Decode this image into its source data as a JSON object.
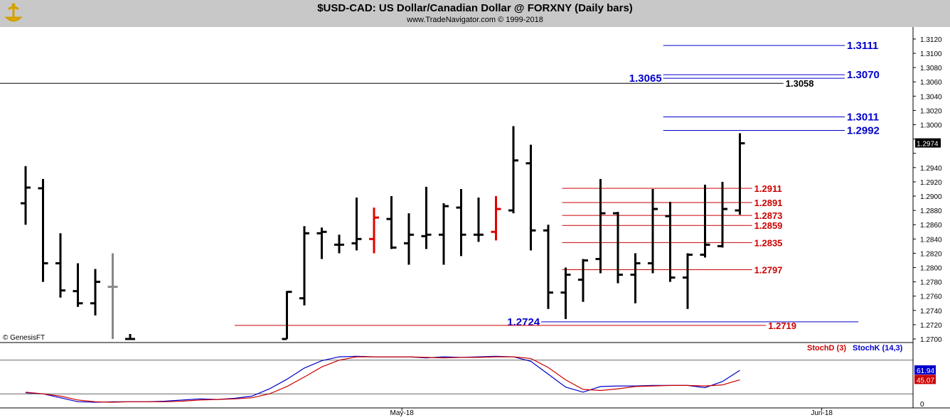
{
  "header": {
    "title": "$USD-CAD:  US Dollar/Canadian Dollar @ FORXNY  (Daily bars)",
    "subtitle": "www.TradeNavigator.com © 1999-2018"
  },
  "watermark": "© GenesisFT",
  "colors": {
    "bar": "#000000",
    "down_bar": "#e00000",
    "blue": "#0000cc",
    "red": "#cc0000",
    "header_bg": "#c8c8c8"
  },
  "chart_data": [
    {
      "type": "ohlc",
      "title": "$USD-CAD:  US Dollar/Canadian Dollar @ FORXNY  (Daily bars)",
      "ylim": [
        1.27,
        1.313
      ],
      "y_ticks": [
        "1.2700",
        "1.2720",
        "1.2740",
        "1.2760",
        "1.2780",
        "1.2800",
        "1.2820",
        "1.2840",
        "1.2860",
        "1.2880",
        "1.2900",
        "1.2920",
        "1.2940",
        "1.2960",
        "1.2980",
        "1.3000",
        "1.3020",
        "1.3040",
        "1.3060",
        "1.3080",
        "1.3100",
        "1.3120"
      ],
      "x_labels": [
        {
          "label": "May-18",
          "bar": 21.6
        },
        {
          "label": "Jun-18",
          "bar": 45.7
        }
      ],
      "bars": [
        {
          "i": 0,
          "o": 1.289,
          "h": 1.2942,
          "l": 1.286,
          "c": 1.2912,
          "color": "black"
        },
        {
          "i": 1,
          "o": 1.2911,
          "h": 1.2924,
          "l": 1.278,
          "c": 1.2806,
          "color": "black"
        },
        {
          "i": 2,
          "o": 1.2806,
          "h": 1.2848,
          "l": 1.2758,
          "c": 1.2768,
          "color": "black"
        },
        {
          "i": 3,
          "o": 1.2767,
          "h": 1.2806,
          "l": 1.2745,
          "c": 1.275,
          "color": "black"
        },
        {
          "i": 4,
          "o": 1.275,
          "h": 1.2798,
          "l": 1.2733,
          "c": 1.278,
          "color": "black"
        },
        {
          "i": 5,
          "o": 1.2773,
          "h": 1.282,
          "l": 1.27,
          "c": 1.2773,
          "color": "gray"
        },
        {
          "i": 6,
          "o": 1.27,
          "h": 1.2707,
          "l": 1.27,
          "c": 1.27,
          "color": "black"
        },
        {
          "i": 15,
          "o": 1.27,
          "h": 1.2767,
          "l": 1.27,
          "c": 1.2766,
          "color": "black"
        },
        {
          "i": 16,
          "o": 1.2757,
          "h": 1.2858,
          "l": 1.2747,
          "c": 1.2848,
          "color": "black"
        },
        {
          "i": 17,
          "o": 1.2848,
          "h": 1.2856,
          "l": 1.2812,
          "c": 1.285,
          "color": "black"
        },
        {
          "i": 18,
          "o": 1.2832,
          "h": 1.2846,
          "l": 1.282,
          "c": 1.2832,
          "color": "black"
        },
        {
          "i": 19,
          "o": 1.2834,
          "h": 1.2898,
          "l": 1.2824,
          "c": 1.284,
          "color": "black"
        },
        {
          "i": 20,
          "o": 1.284,
          "h": 1.2884,
          "l": 1.282,
          "c": 1.287,
          "color": "red"
        },
        {
          "i": 21,
          "o": 1.2868,
          "h": 1.29,
          "l": 1.2826,
          "c": 1.2828,
          "color": "black"
        },
        {
          "i": 22,
          "o": 1.2834,
          "h": 1.2876,
          "l": 1.2804,
          "c": 1.2846,
          "color": "black"
        },
        {
          "i": 23,
          "o": 1.2844,
          "h": 1.2913,
          "l": 1.2826,
          "c": 1.2846,
          "color": "black"
        },
        {
          "i": 24,
          "o": 1.2846,
          "h": 1.289,
          "l": 1.2804,
          "c": 1.2886,
          "color": "black"
        },
        {
          "i": 25,
          "o": 1.2884,
          "h": 1.291,
          "l": 1.2816,
          "c": 1.2846,
          "color": "black"
        },
        {
          "i": 26,
          "o": 1.2846,
          "h": 1.2898,
          "l": 1.2836,
          "c": 1.2846,
          "color": "black"
        },
        {
          "i": 27,
          "o": 1.285,
          "h": 1.29,
          "l": 1.2838,
          "c": 1.2882,
          "color": "red"
        },
        {
          "i": 28,
          "o": 1.288,
          "h": 1.2998,
          "l": 1.2876,
          "c": 1.295,
          "color": "black"
        },
        {
          "i": 29,
          "o": 1.2946,
          "h": 1.2972,
          "l": 1.2824,
          "c": 1.2852,
          "color": "black"
        },
        {
          "i": 30,
          "o": 1.2852,
          "h": 1.286,
          "l": 1.2742,
          "c": 1.2765,
          "color": "black"
        },
        {
          "i": 31,
          "o": 1.2765,
          "h": 1.28,
          "l": 1.2728,
          "c": 1.279,
          "color": "black"
        },
        {
          "i": 32,
          "o": 1.2783,
          "h": 1.2812,
          "l": 1.2752,
          "c": 1.281,
          "color": "black"
        },
        {
          "i": 33,
          "o": 1.2812,
          "h": 1.2924,
          "l": 1.2792,
          "c": 1.2876,
          "color": "black"
        },
        {
          "i": 34,
          "o": 1.2876,
          "h": 1.2878,
          "l": 1.2778,
          "c": 1.279,
          "color": "black"
        },
        {
          "i": 35,
          "o": 1.279,
          "h": 1.282,
          "l": 1.275,
          "c": 1.2806,
          "color": "black"
        },
        {
          "i": 36,
          "o": 1.2806,
          "h": 1.291,
          "l": 1.2792,
          "c": 1.2882,
          "color": "black"
        },
        {
          "i": 37,
          "o": 1.2872,
          "h": 1.2892,
          "l": 1.278,
          "c": 1.2786,
          "color": "black"
        },
        {
          "i": 38,
          "o": 1.2786,
          "h": 1.282,
          "l": 1.2742,
          "c": 1.2818,
          "color": "black"
        },
        {
          "i": 39,
          "o": 1.2818,
          "h": 1.2916,
          "l": 1.2814,
          "c": 1.2832,
          "color": "black"
        },
        {
          "i": 40,
          "o": 1.283,
          "h": 1.292,
          "l": 1.2828,
          "c": 1.2882,
          "color": "black"
        },
        {
          "i": 41,
          "o": 1.288,
          "h": 1.2988,
          "l": 1.2874,
          "c": 1.2974,
          "color": "black"
        }
      ],
      "levels": [
        {
          "value": 1.3111,
          "label": "1.3111",
          "color": "blue",
          "from_bar": 36.6
        },
        {
          "value": 1.307,
          "label": "1.3070",
          "color": "blue",
          "from_bar": 36.6
        },
        {
          "value": 1.3065,
          "label": "1.3065",
          "color": "blue",
          "from_bar": 36.6,
          "label_side": "left"
        },
        {
          "value": 1.3058,
          "label": "1.3058",
          "color": "black",
          "from_bar": -1.5,
          "to_bar": 43.5
        },
        {
          "value": 1.3011,
          "label": "1.3011",
          "color": "blue",
          "from_bar": 36.6
        },
        {
          "value": 1.2992,
          "label": "1.2992",
          "color": "blue",
          "from_bar": 36.6
        },
        {
          "value": 1.2911,
          "label": "1.2911",
          "color": "red",
          "from_bar": 30.8,
          "to_bar": 41.7
        },
        {
          "value": 1.2891,
          "label": "1.2891",
          "color": "red",
          "from_bar": 30.8,
          "to_bar": 41.7
        },
        {
          "value": 1.2873,
          "label": "1.2873",
          "color": "red",
          "from_bar": 30.8,
          "to_bar": 41.7
        },
        {
          "value": 1.2859,
          "label": "1.2859",
          "color": "red",
          "from_bar": 30.8,
          "to_bar": 41.7
        },
        {
          "value": 1.2835,
          "label": "1.2835",
          "color": "red",
          "from_bar": 30.8,
          "to_bar": 41.7
        },
        {
          "value": 1.2797,
          "label": "1.2797",
          "color": "red",
          "from_bar": 30.8,
          "to_bar": 41.7
        },
        {
          "value": 1.2724,
          "label": "1.2724",
          "color": "blue",
          "from_bar": 29.6,
          "to_bar": 47.8,
          "label_side": "left"
        },
        {
          "value": 1.2719,
          "label": "1.2719",
          "color": "red",
          "from_bar": 12.0,
          "to_bar": 42.5
        }
      ],
      "last_price": "1.2974"
    },
    {
      "type": "line",
      "legend": [
        "StochD (3)",
        "StochK (14,3)"
      ],
      "ylim": [
        0,
        100
      ],
      "y_ticks": [
        "0"
      ],
      "series": [
        {
          "name": "StochK (14,3)",
          "color": "blue",
          "points": [
            [
              0,
              22
            ],
            [
              1,
              20
            ],
            [
              2,
              13
            ],
            [
              3,
              6
            ],
            [
              4,
              5
            ],
            [
              5,
              6
            ],
            [
              6,
              6
            ],
            [
              7,
              6
            ],
            [
              8,
              7
            ],
            [
              9,
              9
            ],
            [
              10,
              11
            ],
            [
              11,
              10
            ],
            [
              12,
              12
            ],
            [
              13,
              16
            ],
            [
              14,
              29
            ],
            [
              15,
              46
            ],
            [
              16,
              66
            ],
            [
              17,
              79
            ],
            [
              18,
              86
            ],
            [
              19,
              87
            ],
            [
              20,
              86
            ],
            [
              21,
              86
            ],
            [
              22,
              86
            ],
            [
              23,
              84
            ],
            [
              24,
              86
            ],
            [
              25,
              85
            ],
            [
              26,
              86
            ],
            [
              27,
              87
            ],
            [
              28,
              86
            ],
            [
              29,
              78
            ],
            [
              30,
              55
            ],
            [
              31,
              32
            ],
            [
              32,
              23
            ],
            [
              33,
              33
            ],
            [
              34,
              34
            ],
            [
              35,
              34
            ],
            [
              36,
              35
            ],
            [
              37,
              35
            ],
            [
              38,
              35
            ],
            [
              39,
              31
            ],
            [
              40,
              42
            ],
            [
              41,
              61.94
            ]
          ]
        },
        {
          "name": "StochD (3)",
          "color": "red",
          "points": [
            [
              0,
              23
            ],
            [
              1,
              20
            ],
            [
              2,
              16
            ],
            [
              3,
              9
            ],
            [
              4,
              6
            ],
            [
              5,
              5
            ],
            [
              6,
              6
            ],
            [
              7,
              6
            ],
            [
              8,
              6
            ],
            [
              9,
              7
            ],
            [
              10,
              9
            ],
            [
              11,
              10
            ],
            [
              12,
              11
            ],
            [
              13,
              13
            ],
            [
              14,
              20
            ],
            [
              15,
              33
            ],
            [
              16,
              50
            ],
            [
              17,
              68
            ],
            [
              18,
              80
            ],
            [
              19,
              86
            ],
            [
              20,
              86
            ],
            [
              21,
              86
            ],
            [
              22,
              86
            ],
            [
              23,
              85
            ],
            [
              24,
              84
            ],
            [
              25,
              85
            ],
            [
              26,
              85
            ],
            [
              27,
              86
            ],
            [
              28,
              86
            ],
            [
              29,
              83
            ],
            [
              30,
              67
            ],
            [
              31,
              45
            ],
            [
              32,
              28
            ],
            [
              33,
              26
            ],
            [
              34,
              29
            ],
            [
              35,
              33
            ],
            [
              36,
              34
            ],
            [
              37,
              35
            ],
            [
              38,
              35
            ],
            [
              39,
              34
            ],
            [
              40,
              36
            ],
            [
              41,
              45.07
            ]
          ]
        }
      ],
      "last_values": {
        "k": "61.94",
        "d": "45.07"
      }
    }
  ]
}
